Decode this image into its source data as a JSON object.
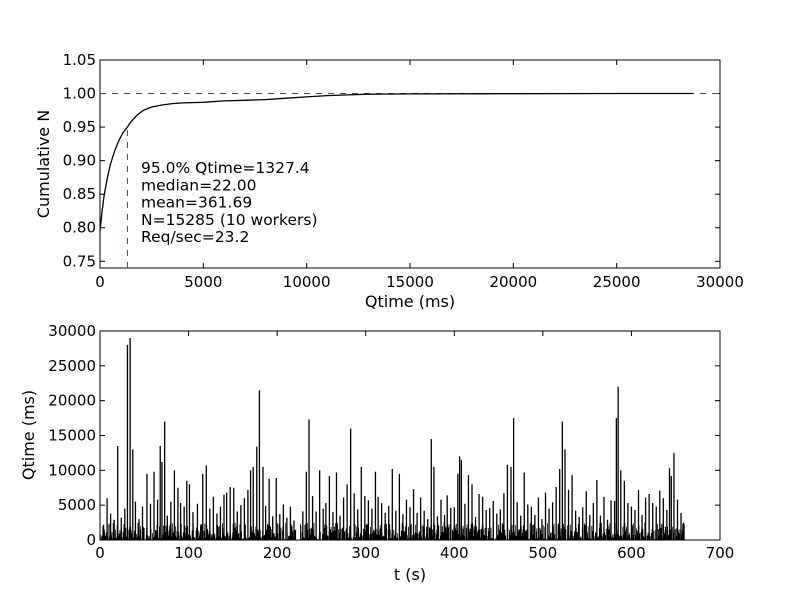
{
  "chart_data": [
    {
      "type": "line",
      "xlabel": "Qtime (ms)",
      "ylabel": "Cumulative N",
      "xlim": [
        0,
        30000
      ],
      "ylim": [
        0.74,
        1.05
      ],
      "xticks": [
        0,
        5000,
        10000,
        15000,
        20000,
        25000,
        30000
      ],
      "xtick_labels": [
        "0",
        "5000",
        "10000",
        "15000",
        "20000",
        "25000",
        "30000"
      ],
      "yticks": [
        0.75,
        0.8,
        0.85,
        0.9,
        0.95,
        1.0,
        1.05
      ],
      "ytick_labels": [
        "0.75",
        "0.80",
        "0.85",
        "0.90",
        "0.95",
        "1.00",
        "1.05"
      ],
      "grid": false,
      "series": [
        {
          "color": "#000000",
          "x": [
            0,
            100,
            200,
            350,
            500,
            700,
            900,
            1100,
            1327,
            1500,
            1800,
            2100,
            2500,
            3000,
            3500,
            4000,
            5000,
            6000,
            7000,
            8000,
            9000,
            10000,
            11000,
            12000,
            13000,
            15000,
            20000,
            25000,
            28700
          ],
          "y": [
            0.795,
            0.825,
            0.848,
            0.873,
            0.894,
            0.914,
            0.929,
            0.941,
            0.95,
            0.958,
            0.968,
            0.975,
            0.98,
            0.983,
            0.985,
            0.986,
            0.987,
            0.989,
            0.99,
            0.991,
            0.993,
            0.995,
            0.997,
            0.998,
            0.999,
            0.9995,
            0.9998,
            1.0,
            1.0
          ]
        }
      ],
      "reference_lines": [
        {
          "orientation": "horizontal",
          "value": 1.0,
          "color": "#ff0000",
          "style": "dashed"
        },
        {
          "orientation": "vertical",
          "value": 1327.4,
          "color": "#ff0000",
          "style": "dashed"
        }
      ],
      "annotations": [
        "95.0% Qtime=1327.4",
        "median=22.00",
        "mean=361.69",
        "N=15285 (10 workers)",
        "Req/sec=23.2"
      ]
    },
    {
      "type": "line",
      "xlabel": "t (s)",
      "ylabel": "Qtime (ms)",
      "xlim": [
        0,
        700
      ],
      "ylim": [
        0,
        30000
      ],
      "xticks": [
        0,
        100,
        200,
        300,
        400,
        500,
        600,
        700
      ],
      "xtick_labels": [
        "0",
        "100",
        "200",
        "300",
        "400",
        "500",
        "600",
        "700"
      ],
      "yticks": [
        0,
        5000,
        10000,
        15000,
        20000,
        25000,
        30000
      ],
      "ytick_labels": [
        "0",
        "5000",
        "10000",
        "15000",
        "20000",
        "25000",
        "30000"
      ],
      "grid": false,
      "series": [
        {
          "color": "#000000",
          "t_range": [
            0,
            660
          ],
          "gap": [
            221,
            226
          ],
          "baseline_max": 2500,
          "spikes": [
            [
              4,
              2200
            ],
            [
              8,
              6000
            ],
            [
              12,
              3800
            ],
            [
              16,
              2900
            ],
            [
              20,
              13500
            ],
            [
              24,
              3200
            ],
            [
              28,
              4500
            ],
            [
              31,
              28000
            ],
            [
              34,
              29000
            ],
            [
              37,
              13000
            ],
            [
              40,
              5500
            ],
            [
              44,
              3000
            ],
            [
              48,
              4800
            ],
            [
              53,
              9500
            ],
            [
              57,
              5200
            ],
            [
              61,
              9800
            ],
            [
              65,
              5800
            ],
            [
              68,
              13500
            ],
            [
              70,
              11200
            ],
            [
              73,
              17000
            ],
            [
              76,
              3500
            ],
            [
              80,
              5500
            ],
            [
              84,
              10000
            ],
            [
              88,
              7500
            ],
            [
              91,
              5300
            ],
            [
              95,
              4800
            ],
            [
              98,
              8500
            ],
            [
              101,
              8000
            ],
            [
              105,
              4000
            ],
            [
              110,
              5200
            ],
            [
              116,
              9500
            ],
            [
              120,
              10700
            ],
            [
              124,
              4500
            ],
            [
              128,
              6200
            ],
            [
              132,
              3800
            ],
            [
              136,
              4800
            ],
            [
              140,
              6500
            ],
            [
              143,
              6800
            ],
            [
              147,
              7600
            ],
            [
              151,
              7500
            ],
            [
              155,
              4100
            ],
            [
              159,
              5000
            ],
            [
              163,
              6000
            ],
            [
              167,
              7200
            ],
            [
              170,
              10000
            ],
            [
              173,
              10500
            ],
            [
              177,
              13400
            ],
            [
              180,
              21500
            ],
            [
              184,
              10500
            ],
            [
              187,
              4900
            ],
            [
              191,
              8800
            ],
            [
              195,
              3400
            ],
            [
              199,
              8900
            ],
            [
              203,
              3700
            ],
            [
              207,
              5100
            ],
            [
              211,
              3200
            ],
            [
              215,
              4800
            ],
            [
              219,
              2800
            ],
            [
              229,
              4100
            ],
            [
              233,
              9800
            ],
            [
              236,
              17300
            ],
            [
              240,
              6300
            ],
            [
              244,
              4100
            ],
            [
              248,
              10000
            ],
            [
              252,
              4500
            ],
            [
              255,
              5300
            ],
            [
              259,
              9200
            ],
            [
              263,
              4000
            ],
            [
              267,
              9700
            ],
            [
              271,
              3500
            ],
            [
              275,
              6100
            ],
            [
              279,
              8000
            ],
            [
              283,
              16000
            ],
            [
              287,
              6700
            ],
            [
              291,
              4400
            ],
            [
              295,
              10500
            ],
            [
              299,
              6300
            ],
            [
              303,
              5700
            ],
            [
              307,
              4500
            ],
            [
              311,
              9800
            ],
            [
              314,
              6200
            ],
            [
              318,
              5300
            ],
            [
              322,
              3900
            ],
            [
              326,
              4900
            ],
            [
              330,
              10200
            ],
            [
              334,
              4200
            ],
            [
              338,
              9500
            ],
            [
              342,
              3700
            ],
            [
              346,
              5800
            ],
            [
              350,
              4700
            ],
            [
              354,
              7300
            ],
            [
              358,
              3900
            ],
            [
              362,
              6100
            ],
            [
              366,
              4200
            ],
            [
              370,
              3000
            ],
            [
              374,
              14500
            ],
            [
              377,
              10500
            ],
            [
              381,
              3400
            ],
            [
              385,
              5800
            ],
            [
              389,
              3600
            ],
            [
              392,
              6400
            ],
            [
              396,
              4600
            ],
            [
              400,
              4700
            ],
            [
              404,
              9500
            ],
            [
              406,
              12000
            ],
            [
              408,
              11500
            ],
            [
              412,
              5200
            ],
            [
              416,
              9300
            ],
            [
              420,
              8000
            ],
            [
              424,
              3300
            ],
            [
              428,
              6600
            ],
            [
              432,
              6200
            ],
            [
              436,
              4300
            ],
            [
              440,
              4600
            ],
            [
              444,
              5600
            ],
            [
              448,
              3800
            ],
            [
              452,
              4400
            ],
            [
              456,
              6700
            ],
            [
              460,
              10800
            ],
            [
              464,
              10500
            ],
            [
              467,
              17500
            ],
            [
              471,
              5400
            ],
            [
              475,
              3500
            ],
            [
              479,
              9700
            ],
            [
              483,
              5100
            ],
            [
              487,
              4800
            ],
            [
              491,
              3600
            ],
            [
              495,
              6100
            ],
            [
              499,
              3000
            ],
            [
              503,
              6800
            ],
            [
              507,
              4500
            ],
            [
              511,
              5400
            ],
            [
              515,
              7600
            ],
            [
              519,
              10200
            ],
            [
              522,
              17000
            ],
            [
              525,
              13000
            ],
            [
              529,
              7200
            ],
            [
              533,
              9300
            ],
            [
              537,
              4200
            ],
            [
              541,
              3300
            ],
            [
              545,
              4700
            ],
            [
              549,
              7000
            ],
            [
              553,
              3600
            ],
            [
              557,
              5300
            ],
            [
              561,
              8600
            ],
            [
              565,
              3500
            ],
            [
              569,
              6200
            ],
            [
              573,
              2900
            ],
            [
              577,
              5700
            ],
            [
              581,
              5600
            ],
            [
              583,
              17500
            ],
            [
              585,
              22000
            ],
            [
              588,
              10000
            ],
            [
              592,
              8500
            ],
            [
              596,
              5300
            ],
            [
              600,
              4800
            ],
            [
              604,
              4300
            ],
            [
              608,
              7200
            ],
            [
              612,
              3600
            ],
            [
              616,
              6100
            ],
            [
              620,
              6600
            ],
            [
              624,
              5300
            ],
            [
              628,
              4800
            ],
            [
              632,
              7100
            ],
            [
              636,
              6000
            ],
            [
              640,
              4300
            ],
            [
              643,
              10300
            ],
            [
              645,
              9200
            ],
            [
              648,
              12500
            ],
            [
              652,
              5800
            ],
            [
              656,
              3900
            ],
            [
              659,
              2500
            ]
          ]
        }
      ]
    }
  ]
}
